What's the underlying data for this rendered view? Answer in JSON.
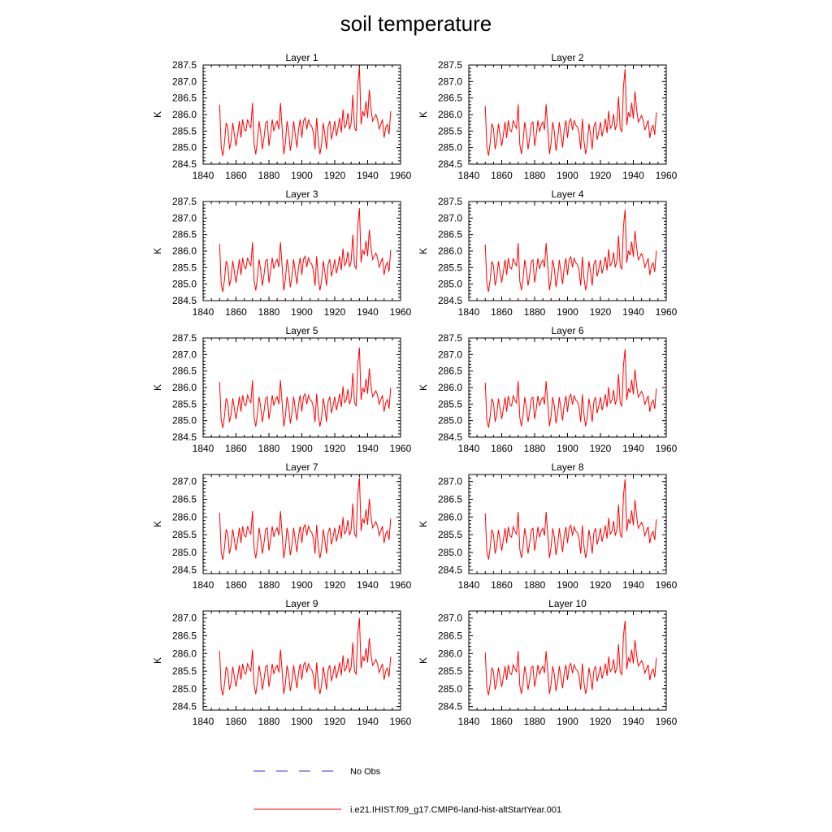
{
  "title": "soil temperature",
  "legend": [
    {
      "name": "No Obs",
      "color": "#3333cc",
      "dash": "14,14"
    },
    {
      "name": "i.e21.IHIST.f09_g17.CMIP6-land-hist-altStartYear.001",
      "color": "#ff0000",
      "dash": ""
    }
  ],
  "chart_data": {
    "type": "line",
    "ylabel": "K",
    "xlim": [
      1840,
      1960
    ],
    "xticks": [
      1840,
      1860,
      1880,
      1900,
      1920,
      1940,
      1960
    ],
    "x_start": 1850,
    "series_color": "#ff0000",
    "base_series": [
      286.3,
      285.0,
      284.75,
      285.15,
      285.75,
      285.6,
      284.95,
      285.2,
      285.75,
      285.4,
      285.05,
      285.4,
      285.8,
      285.3,
      285.85,
      285.55,
      285.5,
      285.85,
      285.7,
      285.6,
      286.35,
      285.1,
      284.8,
      285.2,
      285.8,
      285.45,
      284.95,
      285.3,
      285.75,
      285.8,
      285.05,
      285.4,
      285.85,
      285.5,
      285.7,
      285.8,
      285.55,
      286.35,
      285.6,
      284.8,
      285.15,
      285.8,
      285.5,
      284.9,
      285.25,
      285.8,
      285.4,
      285.0,
      285.55,
      285.85,
      285.3,
      285.8,
      285.9,
      285.55,
      285.85,
      285.7,
      285.65,
      285.45,
      284.95,
      285.9,
      285.2,
      284.8,
      285.1,
      285.75,
      285.4,
      284.95,
      285.65,
      285.8,
      285.25,
      285.5,
      285.8,
      285.35,
      285.6,
      285.9,
      285.45,
      286.15,
      285.6,
      285.7,
      286.05,
      285.55,
      285.75,
      286.6,
      285.6,
      285.5,
      286.9,
      287.45,
      285.7,
      286.1,
      285.95,
      286.4,
      285.9,
      286.75,
      286.2,
      285.8,
      285.9,
      286.0,
      285.85,
      285.55,
      285.7,
      285.85,
      285.3,
      285.6,
      285.7,
      285.4,
      286.1
    ],
    "panels": [
      {
        "title": "Layer 1",
        "ylim": [
          284.5,
          287.5
        ],
        "yticks": [
          "284.5",
          "285.0",
          "285.5",
          "286.0",
          "286.5",
          "287.0",
          "287.5"
        ],
        "offset": 0.0,
        "amp": 1.0
      },
      {
        "title": "Layer 2",
        "ylim": [
          284.5,
          287.5
        ],
        "yticks": [
          "284.5",
          "285.0",
          "285.5",
          "286.0",
          "286.5",
          "287.0",
          "287.5"
        ],
        "offset": -0.02,
        "amp": 0.97
      },
      {
        "title": "Layer 3",
        "ylim": [
          284.5,
          287.5
        ],
        "yticks": [
          "284.5",
          "285.0",
          "285.5",
          "286.0",
          "286.5",
          "287.0",
          "287.5"
        ],
        "offset": -0.04,
        "amp": 0.94
      },
      {
        "title": "Layer 4",
        "ylim": [
          284.5,
          287.5
        ],
        "yticks": [
          "284.5",
          "285.0",
          "285.5",
          "286.0",
          "286.5",
          "287.0",
          "287.5"
        ],
        "offset": -0.05,
        "amp": 0.92
      },
      {
        "title": "Layer 5",
        "ylim": [
          284.5,
          287.5
        ],
        "yticks": [
          "284.5",
          "285.0",
          "285.5",
          "286.0",
          "286.5",
          "287.0",
          "287.5"
        ],
        "offset": -0.06,
        "amp": 0.9
      },
      {
        "title": "Layer 6",
        "ylim": [
          284.5,
          287.5
        ],
        "yticks": [
          "284.5",
          "285.0",
          "285.5",
          "286.0",
          "286.5",
          "287.0",
          "287.5"
        ],
        "offset": -0.07,
        "amp": 0.88
      },
      {
        "title": "Layer 7",
        "ylim": [
          284.4,
          287.2
        ],
        "yticks": [
          "284.5",
          "285.0",
          "285.5",
          "286.0",
          "286.5",
          "287.0"
        ],
        "offset": -0.08,
        "amp": 0.86
      },
      {
        "title": "Layer 8",
        "ylim": [
          284.4,
          287.2
        ],
        "yticks": [
          "284.5",
          "285.0",
          "285.5",
          "286.0",
          "286.5",
          "287.0"
        ],
        "offset": -0.09,
        "amp": 0.84
      },
      {
        "title": "Layer 9",
        "ylim": [
          284.4,
          287.2
        ],
        "yticks": [
          "284.5",
          "285.0",
          "285.5",
          "286.0",
          "286.5",
          "287.0"
        ],
        "offset": -0.1,
        "amp": 0.81
      },
      {
        "title": "Layer 10",
        "ylim": [
          284.4,
          287.2
        ],
        "yticks": [
          "284.5",
          "285.0",
          "285.5",
          "286.0",
          "286.5",
          "287.0"
        ],
        "offset": -0.12,
        "amp": 0.78
      }
    ]
  }
}
